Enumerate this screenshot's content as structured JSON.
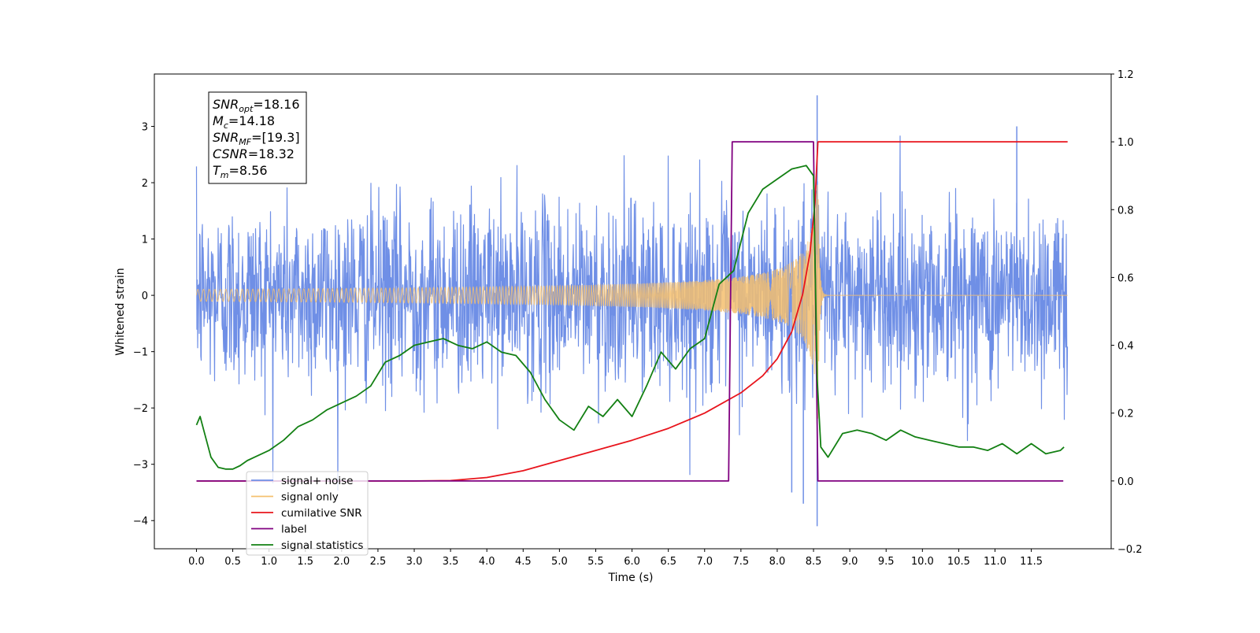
{
  "chart_data": {
    "type": "line",
    "xlabel": "Time (s)",
    "ylabel": "Whitened strain",
    "y2label": "",
    "xlim": [
      -0.58,
      12.6
    ],
    "ylim": [
      -4.5,
      3.93
    ],
    "y2lim": [
      -0.2,
      1.2
    ],
    "x_ticks": [
      "0.0",
      "0.5",
      "1.0",
      "1.5",
      "2.0",
      "2.5",
      "3.0",
      "3.5",
      "4.0",
      "4.5",
      "5.0",
      "5.5",
      "6.0",
      "6.5",
      "7.0",
      "7.5",
      "8.0",
      "8.5",
      "9.0",
      "9.5",
      "10.0",
      "10.5",
      "11.0",
      "11.5"
    ],
    "y_ticks": [
      "3",
      "2",
      "1",
      "0",
      "−1",
      "−2",
      "−3",
      "−4"
    ],
    "y2_ticks": [
      "1.2",
      "1.0",
      "0.8",
      "0.6",
      "0.4",
      "0.2",
      "0.0",
      "−0.2"
    ],
    "grid": false,
    "legend_position": "lower-left",
    "annotations": [
      {
        "main": "SNR",
        "sub": "opt",
        "rest": "=18.16"
      },
      {
        "main": "M",
        "sub": "c",
        "rest": "=14.18"
      },
      {
        "main": "SNR",
        "sub": "MF",
        "rest": "=[19.3]"
      },
      {
        "main": "CSNR",
        "sub": "",
        "rest": "=18.32"
      },
      {
        "main": "T",
        "sub": "m",
        "rest": "=8.56"
      }
    ],
    "series": [
      {
        "name": "signal+ noise",
        "color": "#6f8fe6",
        "axis": "left",
        "kind": "noise",
        "x_range": [
          0,
          12.0
        ],
        "noise_amplitude": 1.5,
        "noise_peak_max": 3.55,
        "noise_peak_min": -4.1
      },
      {
        "name": "signal only",
        "color": "#f5c06f",
        "axis": "left",
        "kind": "chirp",
        "x_range": [
          0,
          12.0
        ],
        "merger_time": 8.56,
        "peak_amplitude": 2.3
      },
      {
        "name": "cumilative SNR",
        "color": "#e8141c",
        "axis": "right",
        "x": [
          0,
          1.0,
          2.0,
          3.0,
          3.5,
          4.0,
          4.5,
          5.0,
          5.5,
          6.0,
          6.5,
          7.0,
          7.5,
          7.8,
          8.0,
          8.2,
          8.35,
          8.45,
          8.52,
          8.56,
          12.0
        ],
        "y": [
          0,
          0,
          0,
          0,
          0.001,
          0.01,
          0.03,
          0.06,
          0.09,
          0.12,
          0.155,
          0.2,
          0.26,
          0.31,
          0.36,
          0.44,
          0.55,
          0.67,
          0.82,
          1.0,
          1.0
        ]
      },
      {
        "name": "label",
        "color": "#800080",
        "axis": "right",
        "x": [
          0,
          7.33,
          7.38,
          8.5,
          8.56,
          11.94
        ],
        "y": [
          0,
          0,
          1.0,
          1.0,
          0,
          0
        ]
      },
      {
        "name": "signal statistics",
        "color": "#138013",
        "axis": "right",
        "x": [
          0,
          0.05,
          0.1,
          0.2,
          0.3,
          0.4,
          0.5,
          0.6,
          0.7,
          0.8,
          1.0,
          1.2,
          1.4,
          1.6,
          1.8,
          2.0,
          2.2,
          2.4,
          2.6,
          2.8,
          3.0,
          3.2,
          3.4,
          3.6,
          3.8,
          4.0,
          4.2,
          4.4,
          4.6,
          4.8,
          5.0,
          5.2,
          5.4,
          5.6,
          5.8,
          6.0,
          6.2,
          6.4,
          6.6,
          6.8,
          7.0,
          7.2,
          7.4,
          7.6,
          7.8,
          8.0,
          8.2,
          8.4,
          8.5,
          8.55,
          8.6,
          8.7,
          8.9,
          9.1,
          9.3,
          9.5,
          9.7,
          9.9,
          10.1,
          10.3,
          10.5,
          10.7,
          10.9,
          11.1,
          11.3,
          11.5,
          11.7,
          11.9,
          11.95
        ],
        "y": [
          0.165,
          0.19,
          0.15,
          0.07,
          0.04,
          0.035,
          0.035,
          0.045,
          0.06,
          0.07,
          0.09,
          0.12,
          0.16,
          0.18,
          0.21,
          0.23,
          0.25,
          0.28,
          0.35,
          0.37,
          0.4,
          0.41,
          0.42,
          0.4,
          0.39,
          0.41,
          0.38,
          0.37,
          0.32,
          0.24,
          0.18,
          0.15,
          0.22,
          0.19,
          0.24,
          0.19,
          0.28,
          0.38,
          0.33,
          0.39,
          0.42,
          0.58,
          0.62,
          0.79,
          0.86,
          0.89,
          0.92,
          0.93,
          0.9,
          0.3,
          0.1,
          0.07,
          0.14,
          0.15,
          0.14,
          0.12,
          0.15,
          0.13,
          0.12,
          0.11,
          0.1,
          0.1,
          0.09,
          0.11,
          0.08,
          0.11,
          0.08,
          0.09,
          0.1
        ]
      }
    ]
  }
}
